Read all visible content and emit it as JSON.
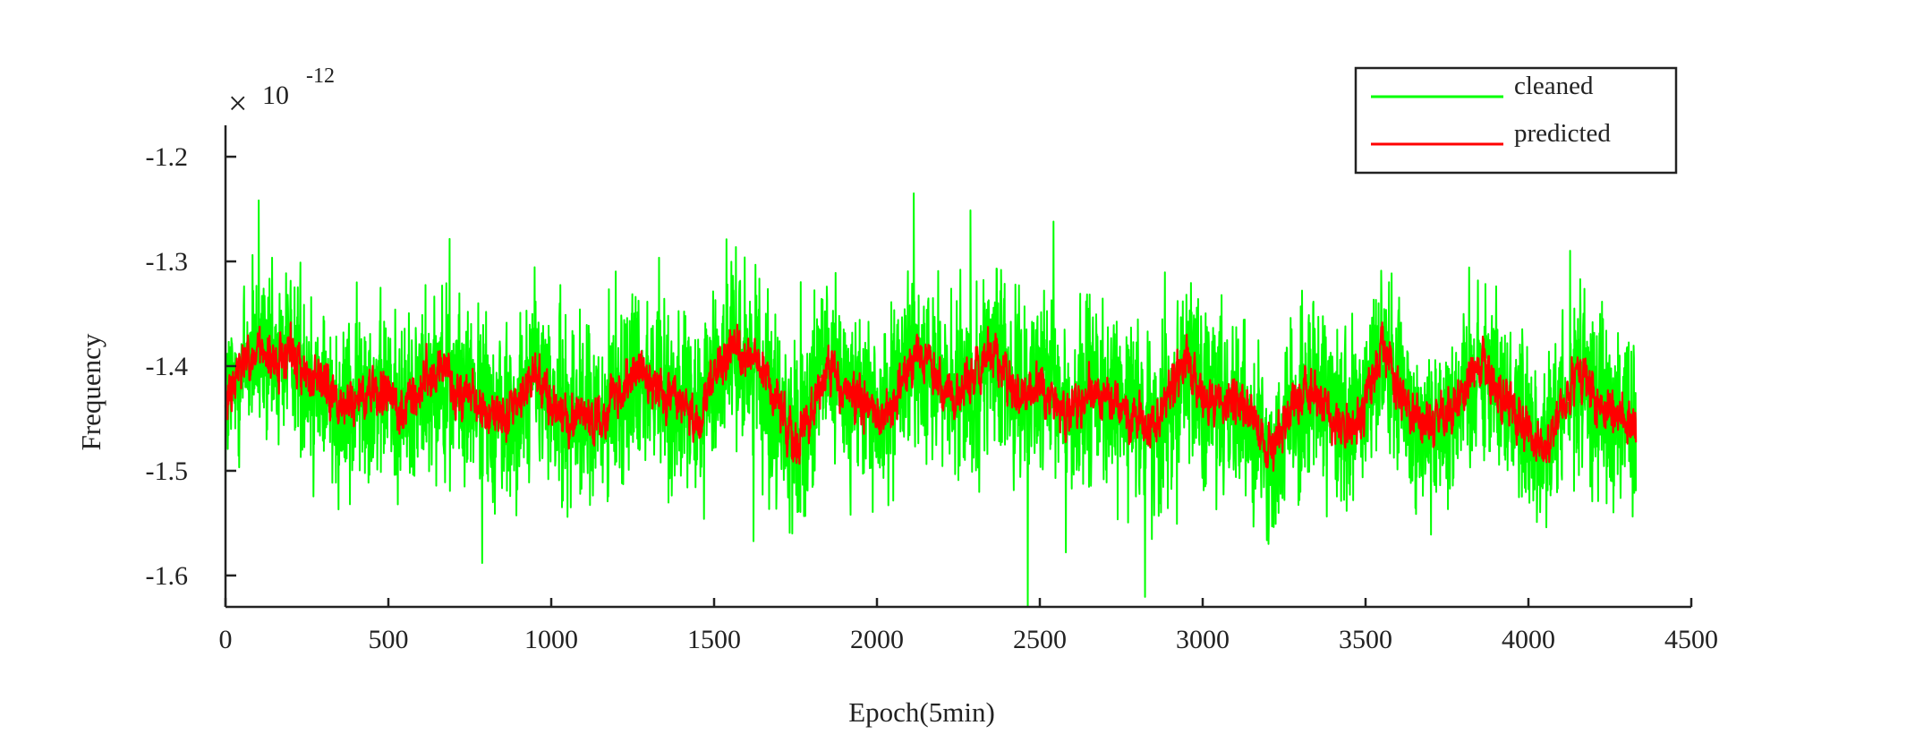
{
  "chart_data": {
    "type": "line",
    "title": "",
    "xlabel": "Epoch(5min)",
    "ylabel": "Frequency",
    "y_multiplier_label": {
      "base": "10",
      "exponent": "-12"
    },
    "xlim": [
      0,
      4500
    ],
    "ylim": [
      -1.63,
      -1.17
    ],
    "x_ticks": [
      0,
      500,
      1000,
      1500,
      2000,
      2500,
      3000,
      3500,
      4000,
      4500
    ],
    "x_tick_labels": [
      "0",
      "500",
      "1000",
      "1500",
      "2000",
      "2500",
      "3000",
      "3500",
      "4000",
      "4500"
    ],
    "y_ticks": [
      -1.2,
      -1.3,
      -1.4,
      -1.5,
      -1.6
    ],
    "y_tick_labels": [
      "-1.2",
      "-1.3",
      "-1.4",
      "-1.5",
      "-1.6"
    ],
    "grid": false,
    "legend_position": "top-right",
    "x_range_of_data": [
      0,
      4330
    ],
    "series": [
      {
        "name": "cleaned",
        "color": "#00ff00",
        "style": "noisy",
        "mean": -1.43,
        "noise_amplitude": 0.055,
        "observed_min": -1.63,
        "observed_max": -1.175
      },
      {
        "name": "predicted",
        "color": "#ff0000",
        "style": "smooth",
        "mean": -1.43,
        "noise_amplitude": 0.018,
        "observed_min": -1.53,
        "observed_max": -1.325
      }
    ],
    "envelope_x": [
      0,
      50,
      100,
      150,
      200,
      250,
      300,
      350,
      400,
      450,
      500,
      550,
      600,
      650,
      700,
      750,
      800,
      850,
      900,
      950,
      1000,
      1050,
      1100,
      1150,
      1200,
      1250,
      1300,
      1350,
      1400,
      1450,
      1500,
      1550,
      1600,
      1650,
      1700,
      1750,
      1800,
      1850,
      1900,
      1950,
      2000,
      2050,
      2100,
      2150,
      2200,
      2250,
      2300,
      2350,
      2400,
      2450,
      2500,
      2550,
      2600,
      2650,
      2700,
      2750,
      2800,
      2850,
      2900,
      2950,
      3000,
      3050,
      3100,
      3150,
      3200,
      3250,
      3300,
      3350,
      3400,
      3450,
      3500,
      3550,
      3600,
      3650,
      3700,
      3750,
      3800,
      3850,
      3900,
      3950,
      4000,
      4050,
      4100,
      4150,
      4200,
      4250,
      4300,
      4330
    ],
    "predicted_trend": [
      -1.44,
      -1.4,
      -1.39,
      -1.4,
      -1.38,
      -1.41,
      -1.42,
      -1.44,
      -1.43,
      -1.42,
      -1.43,
      -1.44,
      -1.42,
      -1.4,
      -1.42,
      -1.43,
      -1.44,
      -1.45,
      -1.44,
      -1.4,
      -1.44,
      -1.45,
      -1.44,
      -1.46,
      -1.43,
      -1.4,
      -1.41,
      -1.43,
      -1.44,
      -1.45,
      -1.41,
      -1.38,
      -1.39,
      -1.41,
      -1.45,
      -1.47,
      -1.44,
      -1.4,
      -1.42,
      -1.43,
      -1.45,
      -1.44,
      -1.4,
      -1.39,
      -1.42,
      -1.43,
      -1.41,
      -1.39,
      -1.41,
      -1.43,
      -1.42,
      -1.43,
      -1.45,
      -1.42,
      -1.43,
      -1.44,
      -1.45,
      -1.46,
      -1.43,
      -1.39,
      -1.43,
      -1.44,
      -1.43,
      -1.45,
      -1.48,
      -1.46,
      -1.43,
      -1.42,
      -1.45,
      -1.46,
      -1.44,
      -1.38,
      -1.42,
      -1.45,
      -1.46,
      -1.44,
      -1.43,
      -1.39,
      -1.42,
      -1.44,
      -1.46,
      -1.48,
      -1.45,
      -1.41,
      -1.43,
      -1.44,
      -1.45,
      -1.46
    ]
  }
}
